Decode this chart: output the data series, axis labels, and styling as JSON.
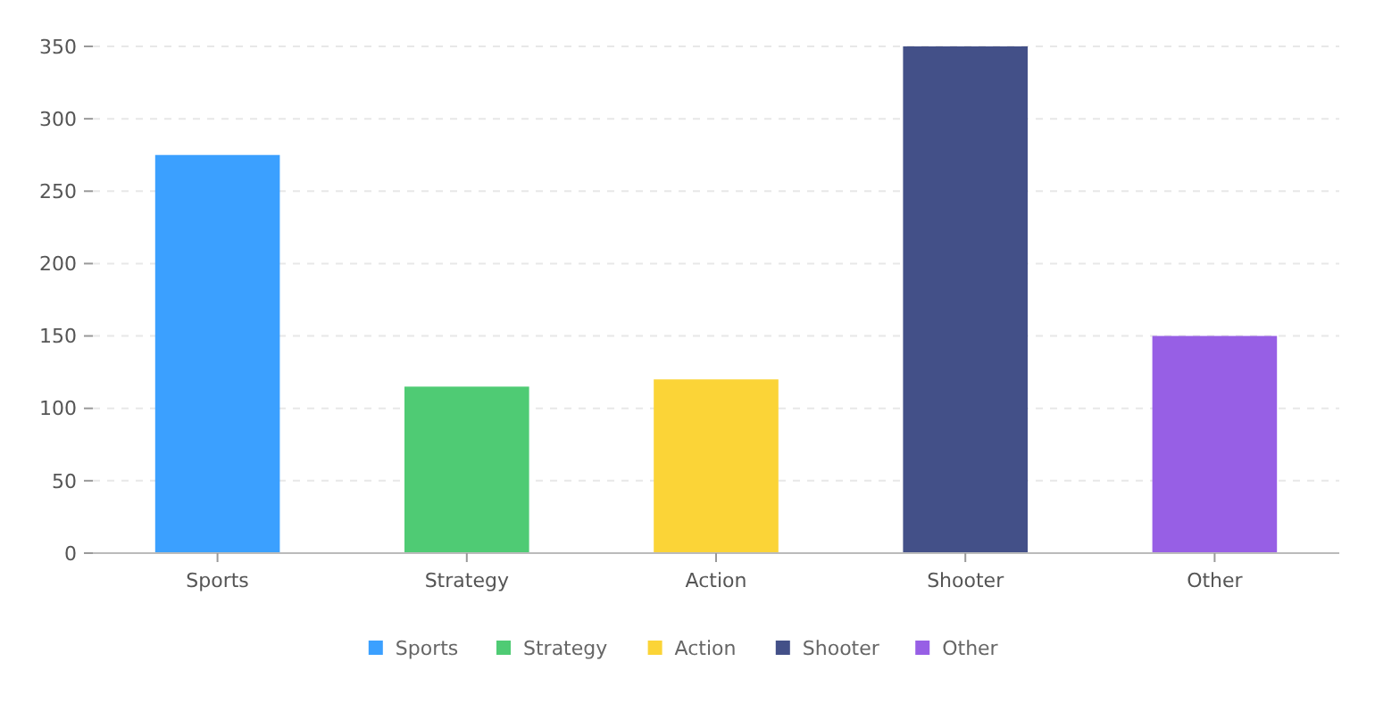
{
  "chart_data": {
    "type": "bar",
    "stacked": true,
    "categories": [
      "Sports",
      "Strategy",
      "Action",
      "Shooter",
      "Other"
    ],
    "series": [
      {
        "name": "Sports",
        "color": "#3ba0ff",
        "values": [
          275,
          null,
          null,
          null,
          null
        ]
      },
      {
        "name": "Strategy",
        "color": "#4fcb74",
        "values": [
          null,
          115,
          null,
          null,
          null
        ]
      },
      {
        "name": "Action",
        "color": "#fbd437",
        "values": [
          null,
          null,
          120,
          null,
          null
        ]
      },
      {
        "name": "Shooter",
        "color": "#435088",
        "values": [
          null,
          null,
          null,
          350,
          null
        ]
      },
      {
        "name": "Other",
        "color": "#975fe5",
        "values": [
          null,
          null,
          null,
          null,
          150
        ]
      }
    ],
    "ylim": [
      0,
      350
    ],
    "yticks": [
      0,
      50,
      100,
      150,
      200,
      250,
      300,
      350
    ],
    "grid": "y",
    "legend": "bottom"
  }
}
